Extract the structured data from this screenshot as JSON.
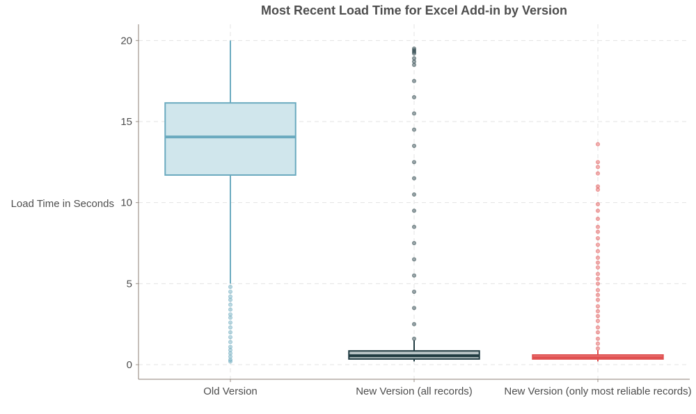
{
  "chart_data": {
    "type": "box",
    "title": "Most Recent Load Time for Excel Add-in by Version",
    "xlabel": "",
    "ylabel": "Load Time in Seconds",
    "ylim": [
      -0.9,
      21
    ],
    "yticks": [
      0,
      5,
      10,
      15,
      20
    ],
    "grid": true,
    "legend": "none",
    "categories": [
      "Old Version",
      "New Version (all records)",
      "New Version (only most reliable records)"
    ],
    "series": [
      {
        "category": "Old Version",
        "color": "#6aaabf",
        "fill": "#d0e6ec",
        "min": 5.0,
        "q1": 11.7,
        "median": 14.05,
        "q3": 16.15,
        "max": 20.0,
        "outliers": [
          0.2,
          0.3,
          0.5,
          0.7,
          0.9,
          1.1,
          1.4,
          1.7,
          2.0,
          2.3,
          2.6,
          2.9,
          3.1,
          3.4,
          3.7,
          4.0,
          4.2,
          4.5,
          4.8
        ]
      },
      {
        "category": "New Version (all records)",
        "color": "#1f3a40",
        "fill": "#b7c3c5",
        "min": 0.2,
        "q1": 0.35,
        "median": 0.55,
        "q3": 0.85,
        "max": 1.5,
        "outliers": [
          1.6,
          2.5,
          3.5,
          4.5,
          5.5,
          6.5,
          7.5,
          8.5,
          9.5,
          10.5,
          11.5,
          12.5,
          13.5,
          14.5,
          15.5,
          16.5,
          17.5,
          18.5,
          18.7,
          18.9,
          19.2,
          19.3,
          19.4,
          19.5
        ]
      },
      {
        "category": "New Version (only most reliable records)",
        "color": "#e05050",
        "fill": "#f4b3b3",
        "min": 0.2,
        "q1": 0.35,
        "median": 0.45,
        "q3": 0.6,
        "max": 0.9,
        "outliers": [
          1.0,
          1.3,
          1.6,
          2.0,
          2.3,
          2.7,
          3.0,
          3.3,
          3.6,
          4.0,
          4.3,
          4.6,
          5.0,
          5.3,
          5.6,
          6.0,
          6.3,
          6.6,
          7.0,
          7.4,
          7.8,
          8.2,
          8.5,
          9.0,
          9.5,
          9.9,
          10.8,
          11.0,
          11.8,
          12.2,
          12.5,
          13.6
        ]
      }
    ]
  }
}
